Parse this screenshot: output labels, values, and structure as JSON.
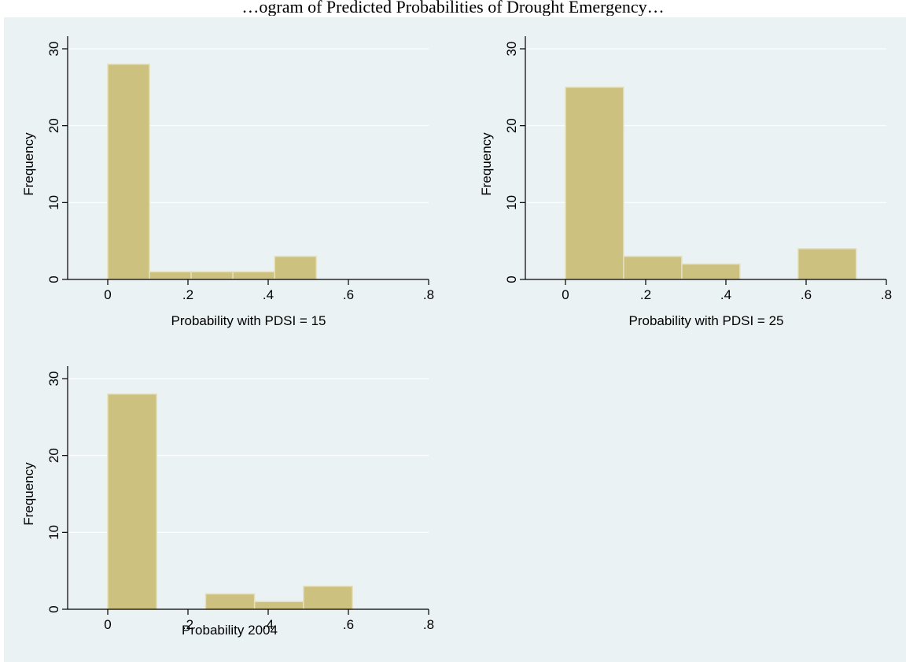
{
  "figure": {
    "title": "…ogram of Predicted Probabilities of Drought Emergency…"
  },
  "colors": {
    "background": "#eaf2f3",
    "bar_fill": "#cdc17f",
    "bar_edge": "#e6e0bd",
    "gridline": "#ffffff",
    "axis": "#000000"
  },
  "chart_data": [
    {
      "type": "bar",
      "subtype": "histogram",
      "title": "",
      "xlabel": "Probability with PDSI = 15",
      "ylabel": "Frequency",
      "xlim": [
        -0.1,
        0.8
      ],
      "ylim": [
        0,
        30
      ],
      "xticks": [
        0,
        0.2,
        0.4,
        0.6,
        0.8
      ],
      "xtick_labels": [
        "0",
        ".2",
        ".4",
        ".6",
        ".8"
      ],
      "yticks": [
        0,
        10,
        20,
        30
      ],
      "ytick_labels": [
        "0",
        "10",
        "20",
        "30"
      ],
      "grid": true,
      "bins": [
        {
          "start": 0.0,
          "end": 0.104,
          "value": 28
        },
        {
          "start": 0.104,
          "end": 0.208,
          "value": 1
        },
        {
          "start": 0.208,
          "end": 0.312,
          "value": 1
        },
        {
          "start": 0.312,
          "end": 0.416,
          "value": 1
        },
        {
          "start": 0.416,
          "end": 0.52,
          "value": 3
        }
      ]
    },
    {
      "type": "bar",
      "subtype": "histogram",
      "title": "",
      "xlabel": "Probability with PDSI = 25",
      "ylabel": "Frequency",
      "xlim": [
        -0.1,
        0.8
      ],
      "ylim": [
        0,
        30
      ],
      "xticks": [
        0,
        0.2,
        0.4,
        0.6,
        0.8
      ],
      "xtick_labels": [
        "0",
        ".2",
        ".4",
        ".6",
        ".8"
      ],
      "yticks": [
        0,
        10,
        20,
        30
      ],
      "ytick_labels": [
        "0",
        "10",
        "20",
        "30"
      ],
      "grid": true,
      "bins": [
        {
          "start": 0.0,
          "end": 0.145,
          "value": 25
        },
        {
          "start": 0.145,
          "end": 0.29,
          "value": 3
        },
        {
          "start": 0.29,
          "end": 0.435,
          "value": 2
        },
        {
          "start": 0.58,
          "end": 0.725,
          "value": 4
        }
      ]
    },
    {
      "type": "bar",
      "subtype": "histogram",
      "title": "",
      "xlabel": "Probability 2004",
      "ylabel": "Frequency",
      "xlim": [
        -0.1,
        0.8
      ],
      "ylim": [
        0,
        30
      ],
      "xticks": [
        0,
        0.2,
        0.4,
        0.6,
        0.8
      ],
      "xtick_labels": [
        "0",
        ".2",
        ".4",
        ".6",
        ".8"
      ],
      "yticks": [
        0,
        10,
        20,
        30
      ],
      "ytick_labels": [
        "0",
        "10",
        "20",
        "30"
      ],
      "grid": true,
      "bins": [
        {
          "start": 0.0,
          "end": 0.122,
          "value": 28
        },
        {
          "start": 0.244,
          "end": 0.366,
          "value": 2
        },
        {
          "start": 0.366,
          "end": 0.488,
          "value": 1
        },
        {
          "start": 0.488,
          "end": 0.61,
          "value": 3
        }
      ]
    }
  ]
}
